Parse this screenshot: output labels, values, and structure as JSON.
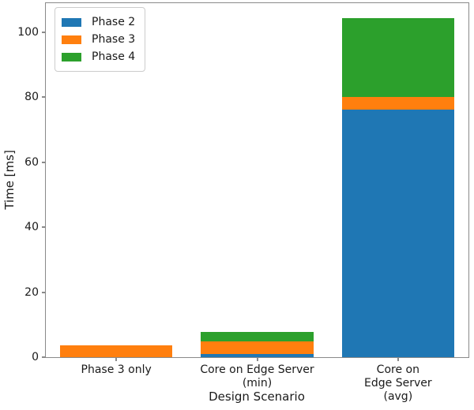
{
  "chart_data": {
    "type": "bar",
    "stacked": true,
    "title": "",
    "xlabel": "Design Scenario",
    "ylabel": "Time [ms]",
    "categories": [
      "Phase 3 only",
      "Core on Edge Server\n(min)",
      "Core on Edge Server\n(avg)"
    ],
    "series": [
      {
        "name": "Phase 2",
        "color": "#1f77b4",
        "values": [
          0,
          1.0,
          76.2
        ]
      },
      {
        "name": "Phase 3",
        "color": "#ff7f0e",
        "values": [
          3.7,
          3.8,
          3.8
        ]
      },
      {
        "name": "Phase 4",
        "color": "#2ca02c",
        "values": [
          0,
          2.9,
          24.4
        ]
      }
    ],
    "yticks": [
      0,
      20,
      40,
      60,
      80,
      100
    ],
    "ylim": [
      0,
      109
    ],
    "bar_width_fraction": 0.8,
    "grid": false,
    "legend": {
      "position": "upper left",
      "entries": [
        "Phase 2",
        "Phase 3",
        "Phase 4"
      ]
    }
  },
  "style": {
    "spine_color": "#8a8a8a",
    "text_color": "#1a1a1a",
    "background": "#ffffff"
  }
}
